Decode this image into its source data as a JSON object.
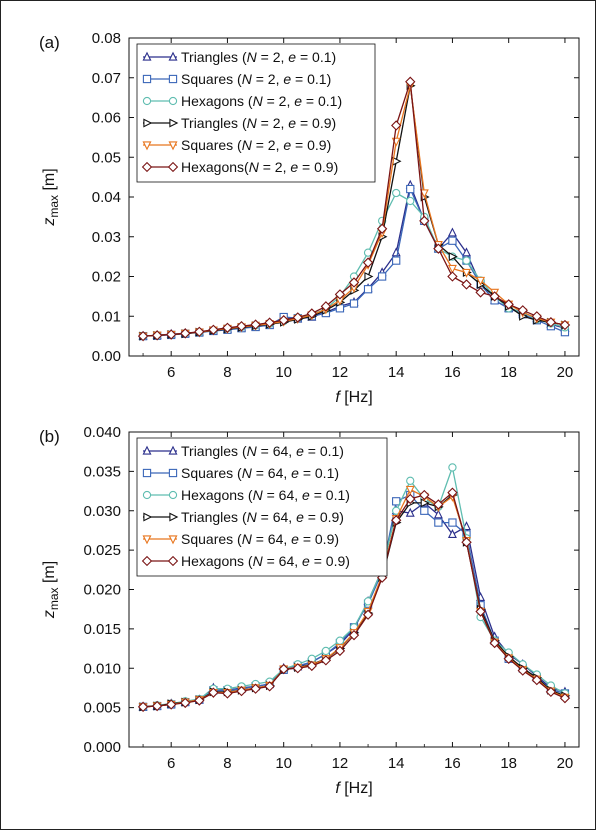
{
  "chart_data": [
    {
      "type": "line",
      "panel_label": "(a)",
      "xlabel": "f [Hz]",
      "ylabel": "z_max [m]",
      "xlim": [
        4.5,
        20.5
      ],
      "ylim": [
        0,
        0.08
      ],
      "xticks": [
        6,
        8,
        10,
        12,
        14,
        16,
        18,
        20
      ],
      "yticks": [
        0.0,
        0.01,
        0.02,
        0.03,
        0.04,
        0.05,
        0.06,
        0.07,
        0.08
      ],
      "ytick_labels": [
        "0.00",
        "0.01",
        "0.02",
        "0.03",
        "0.04",
        "0.05",
        "0.06",
        "0.07",
        "0.08"
      ],
      "grid": false,
      "legend_position": "top-left",
      "x": [
        5,
        5.5,
        6,
        6.5,
        7,
        7.5,
        8,
        8.5,
        9,
        9.5,
        10,
        10.5,
        11,
        11.5,
        12,
        12.5,
        13,
        13.5,
        14,
        14.5,
        15,
        15.5,
        16,
        16.5,
        17,
        17.5,
        18,
        18.5,
        19,
        19.5,
        20
      ],
      "series": [
        {
          "name": "Triangles (N = 2, e = 0.1)",
          "shape": "tri-up",
          "color": "#2b2f8c",
          "values": [
            0.005,
            0.0052,
            0.0055,
            0.0057,
            0.006,
            0.0064,
            0.0068,
            0.0071,
            0.0074,
            0.0078,
            0.0095,
            0.0093,
            0.0098,
            0.011,
            0.0125,
            0.0135,
            0.017,
            0.021,
            0.026,
            0.043,
            0.034,
            0.027,
            0.031,
            0.026,
            0.018,
            0.014,
            0.012,
            0.011,
            0.0095,
            0.008,
            0.007
          ]
        },
        {
          "name": "Squares (N = 2, e = 0.1)",
          "shape": "square",
          "color": "#3a66b8",
          "values": [
            0.005,
            0.0051,
            0.0053,
            0.0056,
            0.0059,
            0.0063,
            0.0066,
            0.007,
            0.0073,
            0.0078,
            0.0098,
            0.0095,
            0.01,
            0.0108,
            0.012,
            0.0132,
            0.0168,
            0.02,
            0.024,
            0.042,
            0.034,
            0.027,
            0.029,
            0.024,
            0.018,
            0.014,
            0.012,
            0.0105,
            0.009,
            0.0075,
            0.006
          ]
        },
        {
          "name": "Hexagons (N = 2, e = 0.1)",
          "shape": "circle",
          "color": "#5fbdb0",
          "values": [
            0.005,
            0.0052,
            0.0054,
            0.0057,
            0.006,
            0.0065,
            0.007,
            0.0073,
            0.0077,
            0.0081,
            0.0088,
            0.0097,
            0.0105,
            0.0118,
            0.015,
            0.02,
            0.026,
            0.034,
            0.041,
            0.039,
            0.035,
            0.027,
            0.025,
            0.024,
            0.019,
            0.015,
            0.012,
            0.011,
            0.0092,
            0.0082,
            0.0072
          ]
        },
        {
          "name": "Triangles (N = 2, e = 0.9)",
          "shape": "tri-right",
          "color": "#111111",
          "values": [
            0.005,
            0.0052,
            0.0054,
            0.0056,
            0.006,
            0.0064,
            0.0068,
            0.0072,
            0.0076,
            0.008,
            0.0085,
            0.0092,
            0.01,
            0.0115,
            0.0135,
            0.0165,
            0.02,
            0.03,
            0.049,
            0.068,
            0.04,
            0.028,
            0.025,
            0.021,
            0.018,
            0.015,
            0.0125,
            0.01,
            0.009,
            0.0085,
            0.0078
          ]
        },
        {
          "name": "Squares (N = 2, e = 0.9)",
          "shape": "tri-down",
          "color": "#e8761f",
          "values": [
            0.005,
            0.0052,
            0.0054,
            0.0057,
            0.006,
            0.0065,
            0.0069,
            0.0073,
            0.0077,
            0.0081,
            0.0087,
            0.0094,
            0.0103,
            0.0118,
            0.014,
            0.0172,
            0.023,
            0.031,
            0.054,
            0.068,
            0.041,
            0.028,
            0.022,
            0.021,
            0.019,
            0.016,
            0.013,
            0.011,
            0.0095,
            0.0085,
            0.0078
          ]
        },
        {
          "name": "Hexagons(N = 2, e = 0.9)",
          "shape": "diamond",
          "color": "#7a1414",
          "values": [
            0.005,
            0.0052,
            0.0054,
            0.0057,
            0.0061,
            0.0066,
            0.0071,
            0.0075,
            0.0079,
            0.0084,
            0.009,
            0.0097,
            0.0107,
            0.0125,
            0.0155,
            0.0185,
            0.0235,
            0.032,
            0.058,
            0.069,
            0.034,
            0.027,
            0.02,
            0.018,
            0.016,
            0.015,
            0.013,
            0.0115,
            0.01,
            0.0085,
            0.0078
          ]
        }
      ]
    },
    {
      "type": "line",
      "panel_label": "(b)",
      "xlabel": "f [Hz]",
      "ylabel": "z_max [m]",
      "xlim": [
        4.5,
        20.5
      ],
      "ylim": [
        0,
        0.04
      ],
      "xticks": [
        6,
        8,
        10,
        12,
        14,
        16,
        18,
        20
      ],
      "yticks": [
        0.0,
        0.005,
        0.01,
        0.015,
        0.02,
        0.025,
        0.03,
        0.035,
        0.04
      ],
      "ytick_labels": [
        "0.000",
        "0.005",
        "0.010",
        "0.015",
        "0.020",
        "0.025",
        "0.030",
        "0.035",
        "0.040"
      ],
      "grid": false,
      "legend_position": "top-left",
      "x": [
        5,
        5.5,
        6,
        6.5,
        7,
        7.5,
        8,
        8.5,
        9,
        9.5,
        10,
        10.5,
        11,
        11.5,
        12,
        12.5,
        13,
        13.5,
        14,
        14.5,
        15,
        15.5,
        16,
        16.5,
        17,
        17.5,
        18,
        18.5,
        19,
        19.5,
        20
      ],
      "series": [
        {
          "name": "Triangles (N = 64, e = 0.1)",
          "shape": "tri-up",
          "color": "#2b2f8c",
          "values": [
            0.0051,
            0.0052,
            0.0055,
            0.0057,
            0.006,
            0.0075,
            0.0072,
            0.0075,
            0.0077,
            0.008,
            0.01,
            0.0102,
            0.0108,
            0.0118,
            0.013,
            0.015,
            0.0185,
            0.0225,
            0.03,
            0.0297,
            0.031,
            0.0295,
            0.027,
            0.028,
            0.019,
            0.014,
            0.0118,
            0.0105,
            0.009,
            0.0075,
            0.007
          ]
        },
        {
          "name": "Squares (N = 64, e = 0.1)",
          "shape": "square",
          "color": "#3a66b8",
          "values": [
            0.0051,
            0.0052,
            0.0054,
            0.0057,
            0.006,
            0.0072,
            0.0072,
            0.0074,
            0.0077,
            0.008,
            0.0098,
            0.0103,
            0.0108,
            0.0118,
            0.0132,
            0.0152,
            0.0182,
            0.0222,
            0.0312,
            0.032,
            0.03,
            0.0285,
            0.0285,
            0.027,
            0.018,
            0.0135,
            0.0112,
            0.01,
            0.0088,
            0.0073,
            0.0068
          ]
        },
        {
          "name": "Hexagons (N = 64, e = 0.1)",
          "shape": "circle",
          "color": "#5fbdb0",
          "values": [
            0.0051,
            0.0053,
            0.0055,
            0.0058,
            0.0061,
            0.0074,
            0.0074,
            0.0077,
            0.008,
            0.0083,
            0.0099,
            0.0105,
            0.0112,
            0.0122,
            0.0135,
            0.0152,
            0.0185,
            0.0225,
            0.03,
            0.0338,
            0.0315,
            0.0305,
            0.0355,
            0.0265,
            0.0165,
            0.0135,
            0.012,
            0.0105,
            0.0092,
            0.0078,
            0.0068
          ]
        },
        {
          "name": "Triangles (N = 64, e = 0.9)",
          "shape": "tri-right",
          "color": "#111111",
          "values": [
            0.0051,
            0.0052,
            0.0055,
            0.0057,
            0.006,
            0.007,
            0.007,
            0.0072,
            0.0075,
            0.0078,
            0.0098,
            0.0101,
            0.0105,
            0.0112,
            0.0125,
            0.0145,
            0.017,
            0.0215,
            0.0285,
            0.031,
            0.031,
            0.0305,
            0.032,
            0.026,
            0.0175,
            0.0135,
            0.0115,
            0.01,
            0.0088,
            0.0072,
            0.0065
          ]
        },
        {
          "name": "Squares (N = 64, e = 0.9)",
          "shape": "tri-down",
          "color": "#e8761f",
          "values": [
            0.0051,
            0.0052,
            0.0054,
            0.0057,
            0.006,
            0.0069,
            0.0069,
            0.0072,
            0.0075,
            0.0078,
            0.0099,
            0.0101,
            0.0104,
            0.0112,
            0.0126,
            0.0145,
            0.0172,
            0.0218,
            0.029,
            0.0327,
            0.0318,
            0.0305,
            0.0318,
            0.0262,
            0.0172,
            0.0133,
            0.0113,
            0.0098,
            0.0086,
            0.0071,
            0.0063
          ]
        },
        {
          "name": "Hexagons (N = 64, e = 0.9)",
          "shape": "diamond",
          "color": "#7a1414",
          "values": [
            0.0051,
            0.0052,
            0.0054,
            0.0056,
            0.0059,
            0.0069,
            0.0068,
            0.0071,
            0.0074,
            0.0077,
            0.0099,
            0.01,
            0.0103,
            0.011,
            0.0122,
            0.0142,
            0.0168,
            0.0215,
            0.0288,
            0.0315,
            0.032,
            0.0308,
            0.0323,
            0.026,
            0.0172,
            0.0132,
            0.0112,
            0.0097,
            0.0085,
            0.007,
            0.0062
          ]
        }
      ]
    }
  ]
}
